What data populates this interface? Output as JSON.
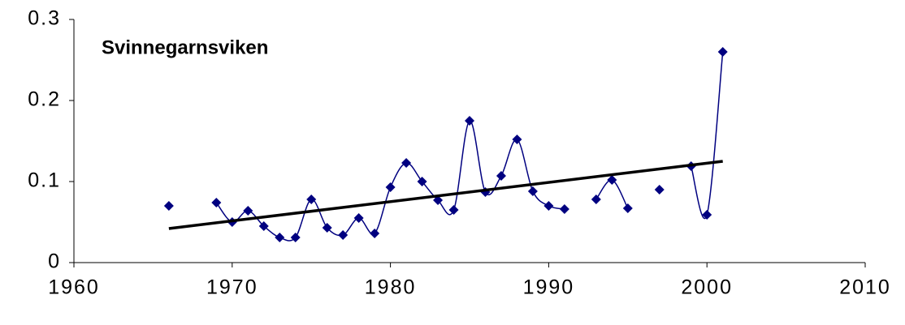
{
  "chart_data": {
    "type": "line",
    "title": "Svinnegarnsviken",
    "x": [
      1966,
      1967,
      1968,
      1969,
      1970,
      1971,
      1972,
      1973,
      1974,
      1975,
      1976,
      1977,
      1978,
      1979,
      1980,
      1981,
      1982,
      1983,
      1984,
      1985,
      1986,
      1987,
      1988,
      1989,
      1990,
      1991,
      1992,
      1993,
      1994,
      1995,
      1996,
      1997,
      1998,
      1999,
      2000,
      2001
    ],
    "series": [
      {
        "color": "#000080",
        "values": [
          0.07,
          null,
          null,
          0.074,
          0.05,
          0.064,
          0.045,
          0.031,
          0.031,
          0.078,
          0.043,
          0.034,
          0.055,
          0.036,
          0.093,
          0.123,
          0.1,
          0.077,
          0.065,
          0.175,
          0.087,
          0.107,
          0.152,
          0.088,
          0.07,
          0.066,
          null,
          0.078,
          0.102,
          0.067,
          null,
          0.09,
          null,
          0.119,
          0.059,
          0.26
        ]
      }
    ],
    "trendline": {
      "color": "#000000",
      "x": [
        1966,
        2001
      ],
      "values": [
        0.042,
        0.125
      ]
    },
    "xlim": [
      1960,
      2010
    ],
    "xticks": [
      1960,
      1970,
      1980,
      1990,
      2000,
      2010
    ],
    "ylim": [
      0,
      0.3
    ],
    "yticks": [
      0,
      0.1,
      0.2,
      0.3
    ],
    "smooth": true
  }
}
